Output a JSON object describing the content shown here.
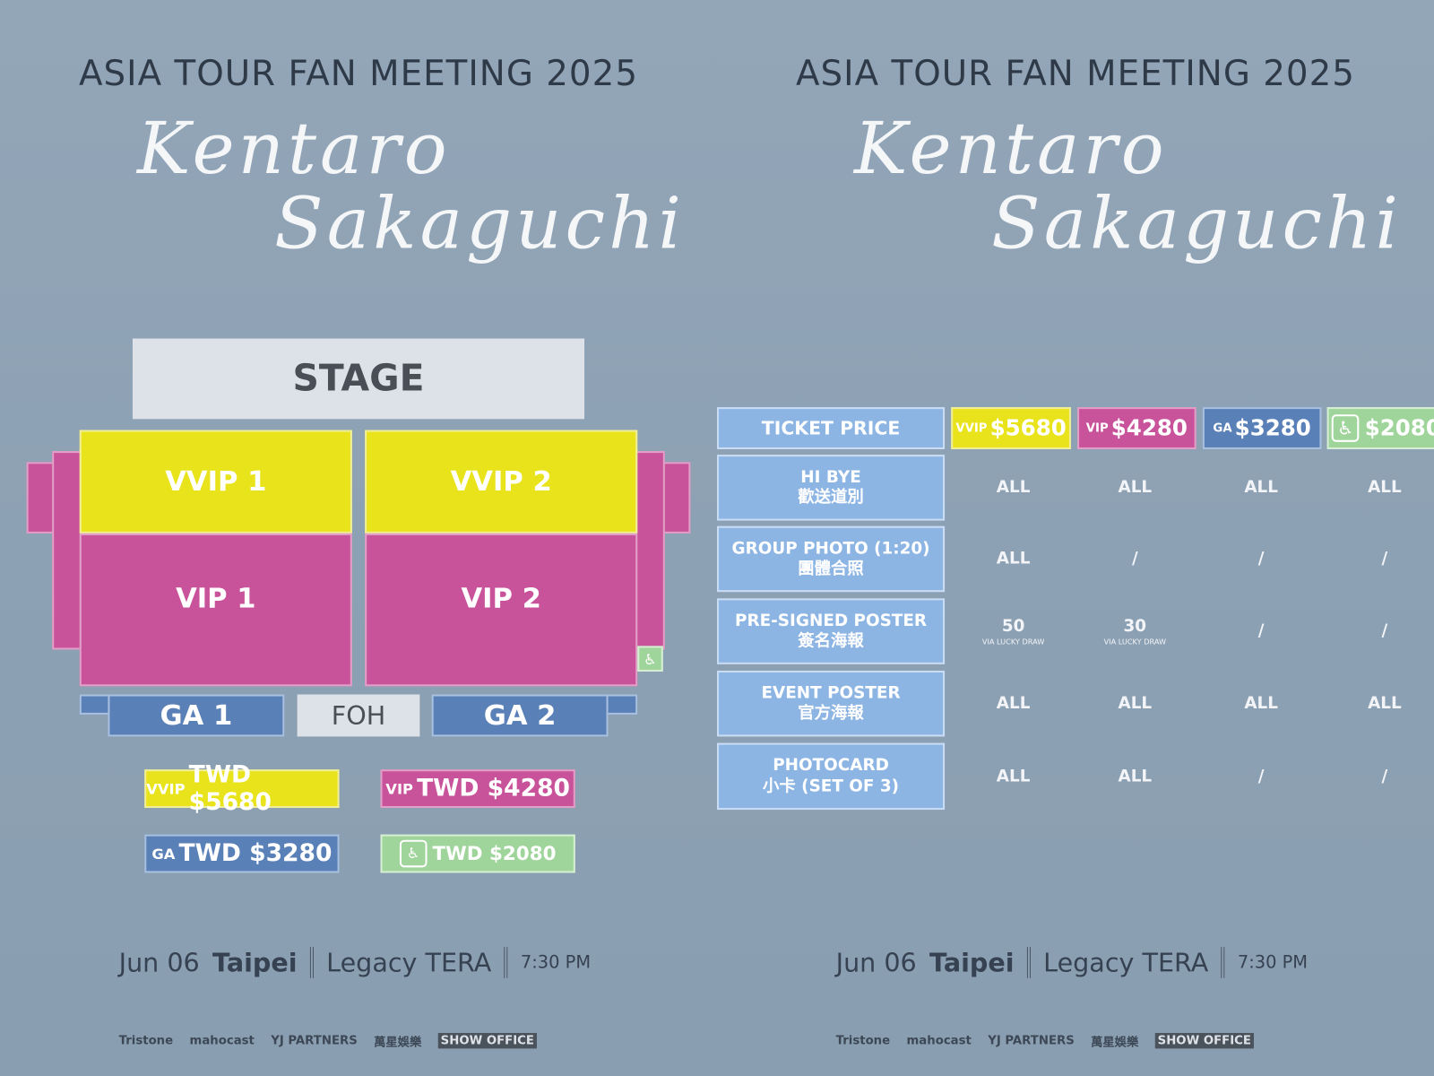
{
  "poster": {
    "title": "ASIA TOUR FAN MEETING 2025",
    "artist_line1": "Kentaro",
    "artist_line2": "Sakaguchi",
    "date": "Jun 06",
    "city": "Taipei",
    "venue": "Legacy TERA",
    "time": "7:30 PM",
    "logos": [
      "Tristone",
      "mahocast",
      "YJ PARTNERS",
      "萬星娛樂",
      "SHOW OFFICE"
    ]
  },
  "seatmap": {
    "stage": "STAGE",
    "vvip1": "VVIP 1",
    "vvip2": "VVIP 2",
    "vip1": "VIP 1",
    "vip2": "VIP 2",
    "ga1": "GA 1",
    "ga2": "GA 2",
    "foh": "FOH",
    "wheelchair_icon": "wheelchair-icon"
  },
  "legend": [
    {
      "tier": "VVIP",
      "price": "TWD $5680",
      "color": "#e9e31c"
    },
    {
      "tier": "VIP",
      "price": "TWD $4280",
      "color": "#c9539a"
    },
    {
      "tier": "GA",
      "price": "TWD $3280",
      "color": "#5a80b8"
    },
    {
      "tier": "♿",
      "price": "TWD $2080",
      "color": "#9fd49a"
    }
  ],
  "table": {
    "header": "TICKET PRICE",
    "columns": [
      {
        "tier": "VVIP",
        "price": "$5680"
      },
      {
        "tier": "VIP",
        "price": "$4280"
      },
      {
        "tier": "GA",
        "price": "$3280"
      },
      {
        "tier": "♿",
        "price": "$2080"
      }
    ],
    "rows": [
      {
        "en": "HI BYE",
        "zh": "歡送道別",
        "values": [
          "ALL",
          "ALL",
          "ALL",
          "ALL"
        ]
      },
      {
        "en": "GROUP PHOTO (1:20)",
        "zh": "團體合照",
        "values": [
          "ALL",
          "/",
          "/",
          "/"
        ]
      },
      {
        "en": "PRE-SIGNED POSTER",
        "zh": "簽名海報",
        "values": [
          "50",
          "30",
          "/",
          "/"
        ],
        "notes": [
          "VIA LUCKY DRAW",
          "VIA LUCKY DRAW"
        ]
      },
      {
        "en": "EVENT POSTER",
        "zh": "官方海報",
        "values": [
          "ALL",
          "ALL",
          "ALL",
          "ALL"
        ]
      },
      {
        "en": "PHOTOCARD",
        "zh": "小卡 (SET OF 3)",
        "values": [
          "ALL",
          "ALL",
          "/",
          "/"
        ]
      }
    ]
  }
}
